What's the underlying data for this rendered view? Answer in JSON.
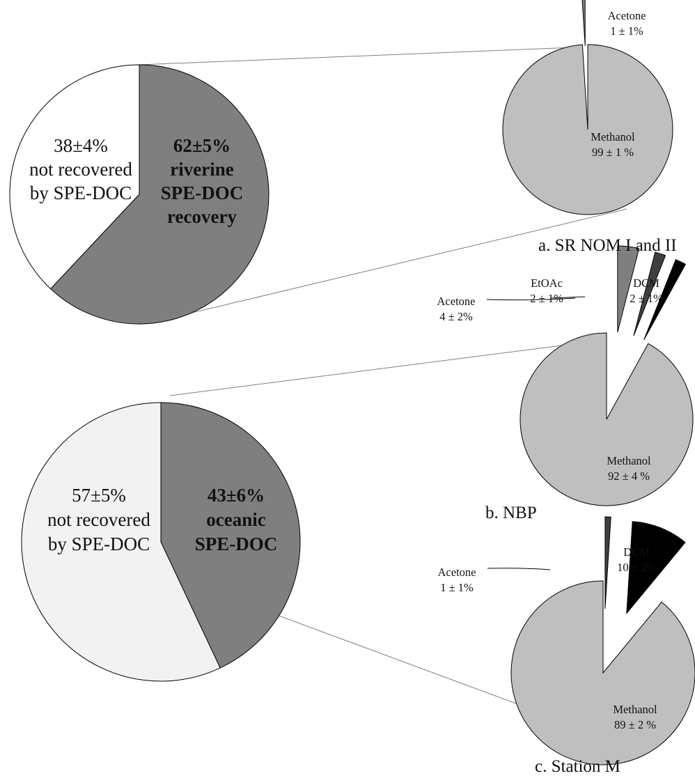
{
  "chart_data": [
    {
      "type": "pie",
      "title": "",
      "slices": [
        {
          "label": "riverine SPE-DOC recovery",
          "value": 62,
          "text": [
            "62±5%",
            "riverine",
            "SPE-DOC",
            "recovery"
          ],
          "color": "#7f7f7f"
        },
        {
          "label": "not recovered by SPE-DOC",
          "value": 38,
          "text": [
            "38±4%",
            "not recovered",
            "by SPE-DOC"
          ],
          "color": "#ffffff"
        }
      ]
    },
    {
      "type": "pie",
      "title": "",
      "slices": [
        {
          "label": "oceanic SPE-DOC",
          "value": 43,
          "text": [
            "43±6%",
            "oceanic",
            "SPE-DOC"
          ],
          "color": "#7f7f7f"
        },
        {
          "label": "not recovered by SPE-DOC",
          "value": 57,
          "text": [
            "57±5%",
            "not recovered",
            "by SPE-DOC"
          ],
          "color": "#f2f2f2"
        }
      ]
    },
    {
      "type": "pie",
      "title": "a.  SR NOM I and II",
      "slices": [
        {
          "label": "Methanol",
          "value": 99,
          "text": [
            "Methanol",
            "99 ± 1 %"
          ],
          "color": "#bfbfbf"
        },
        {
          "label": "Acetone",
          "value": 1,
          "text": [
            "Acetone",
            "1 ± 1%"
          ],
          "color": "#7f7f7f"
        }
      ]
    },
    {
      "type": "pie",
      "title": "b.  NBP",
      "slices": [
        {
          "label": "Methanol",
          "value": 92,
          "text": [
            "Methanol",
            "92 ± 4 %"
          ],
          "color": "#bfbfbf"
        },
        {
          "label": "Acetone",
          "value": 4,
          "text": [
            "Acetone",
            "4 ± 2%"
          ],
          "color": "#7f7f7f"
        },
        {
          "label": "EtOAc",
          "value": 2,
          "text": [
            "EtOAc",
            "2 ± 1%"
          ],
          "color": "#404040"
        },
        {
          "label": "DCM",
          "value": 2,
          "text": [
            "DCM",
            "2 ± 1%"
          ],
          "color": "#000000"
        }
      ]
    },
    {
      "type": "pie",
      "title": "c.  Station M",
      "slices": [
        {
          "label": "Methanol",
          "value": 89,
          "text": [
            "Methanol",
            "89 ± 2 %"
          ],
          "color": "#bfbfbf"
        },
        {
          "label": "Acetone",
          "value": 1,
          "text": [
            "Acetone",
            "1 ± 1%"
          ],
          "color": "#404040"
        },
        {
          "label": "DCM",
          "value": 10,
          "text": [
            "DCM",
            "10 ± 2%"
          ],
          "color": "#000000"
        }
      ]
    }
  ]
}
